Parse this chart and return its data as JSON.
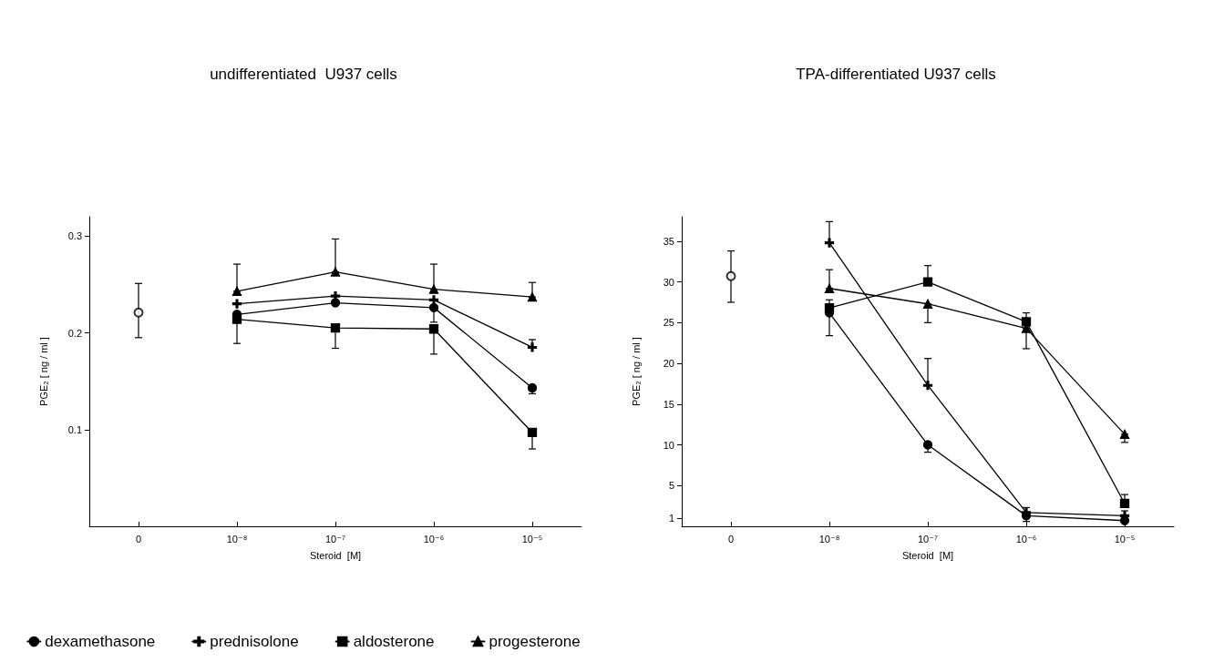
{
  "chart_data": [
    {
      "type": "line",
      "title": "undifferentiated  U937 cells",
      "xlabel": "Steroid  [M]",
      "ylabel": "PGE₂ [ ng / ml ]",
      "categories": [
        "0",
        "10⁻⁸",
        "10⁻⁷",
        "10⁻⁶",
        "10⁻⁵"
      ],
      "series": [
        {
          "name": "dexamethasone",
          "color": "#000000",
          "marker": "circle",
          "values": [
            null,
            0.219,
            0.231,
            0.226,
            0.143
          ],
          "errors": [
            null,
            null,
            null,
            [
              0.211,
              0.226
            ],
            [
              0.137,
              0.143
            ]
          ]
        },
        {
          "name": "prednisolone",
          "color": "#000000",
          "marker": "cross",
          "values": [
            null,
            0.23,
            0.238,
            0.234,
            0.185
          ],
          "errors": [
            null,
            null,
            null,
            null,
            [
              0.185,
              0.193
            ]
          ]
        },
        {
          "name": "aldosterone",
          "color": "#000000",
          "marker": "square",
          "values": [
            null,
            0.214,
            0.205,
            0.204,
            0.097
          ],
          "errors": [
            null,
            [
              0.189,
              0.214
            ],
            [
              0.184,
              0.205
            ],
            [
              0.178,
              0.204
            ],
            [
              0.08,
              0.097
            ]
          ]
        },
        {
          "name": "progesterone",
          "color": "#000000",
          "marker": "triangle",
          "values": [
            null,
            0.243,
            0.263,
            0.245,
            0.237
          ],
          "errors": [
            null,
            [
              0.243,
              0.271
            ],
            [
              0.263,
              0.297
            ],
            [
              0.245,
              0.271
            ],
            [
              0.237,
              0.252
            ]
          ]
        },
        {
          "type": "scatter",
          "color": "#000000",
          "marker": "circle",
          "values": [
            0.221,
            null,
            null,
            null,
            null
          ],
          "errors": [
            [
              0.195,
              0.251
            ],
            null,
            null,
            null,
            null
          ]
        }
      ],
      "ylim": [
        0,
        0.32
      ],
      "yticks": [
        0.1,
        0.2,
        0.3
      ],
      "grid": false,
      "line_style": "solid",
      "legend": "bottom"
    },
    {
      "type": "line",
      "title": "TPA-differentiated U937 cells",
      "xlabel": "Steroid  [M]",
      "ylabel": "PGE₂ [ ng / ml ]",
      "categories": [
        "0",
        "10⁻⁸",
        "10⁻⁷",
        "10⁻⁶",
        "10⁻⁵"
      ],
      "series": [
        {
          "color": "#000000",
          "marker": "circle",
          "values": [
            null,
            26.2,
            10.0,
            1.3,
            0.7
          ],
          "errors": [
            null,
            [
              23.4,
              26.2
            ],
            [
              9.1,
              10.0
            ],
            [
              0.6,
              1.3
            ],
            null
          ]
        },
        {
          "color": "#000000",
          "marker": "cross",
          "values": [
            null,
            34.8,
            17.3,
            1.7,
            1.3
          ],
          "errors": [
            null,
            [
              34.8,
              37.4
            ],
            [
              17.3,
              20.6
            ],
            [
              1.7,
              2.3
            ],
            [
              1.3,
              1.9
            ]
          ]
        },
        {
          "color": "#000000",
          "marker": "square",
          "values": [
            null,
            26.8,
            30.0,
            25.1,
            2.8
          ],
          "errors": [
            null,
            [
              26.8,
              27.8
            ],
            [
              30.0,
              32.0
            ],
            [
              25.1,
              26.2
            ],
            [
              2.8,
              3.9
            ]
          ]
        },
        {
          "color": "#000000",
          "marker": "triangle",
          "values": [
            null,
            29.2,
            27.3,
            24.3,
            11.3
          ],
          "errors": [
            null,
            [
              29.2,
              31.5
            ],
            [
              25.0,
              27.3
            ],
            [
              21.8,
              24.3
            ],
            [
              10.3,
              11.3
            ]
          ]
        },
        {
          "type": "scatter",
          "color": "#000000",
          "marker": "circle",
          "values": [
            30.7,
            null,
            null,
            null,
            null
          ],
          "errors": [
            [
              27.5,
              33.8
            ],
            null,
            null,
            null,
            null
          ]
        }
      ],
      "ylim": [
        0,
        38
      ],
      "yticks": [
        1,
        5,
        10,
        15,
        20,
        25,
        30,
        35
      ],
      "grid": false,
      "line_style": "solid",
      "legend": false
    }
  ]
}
